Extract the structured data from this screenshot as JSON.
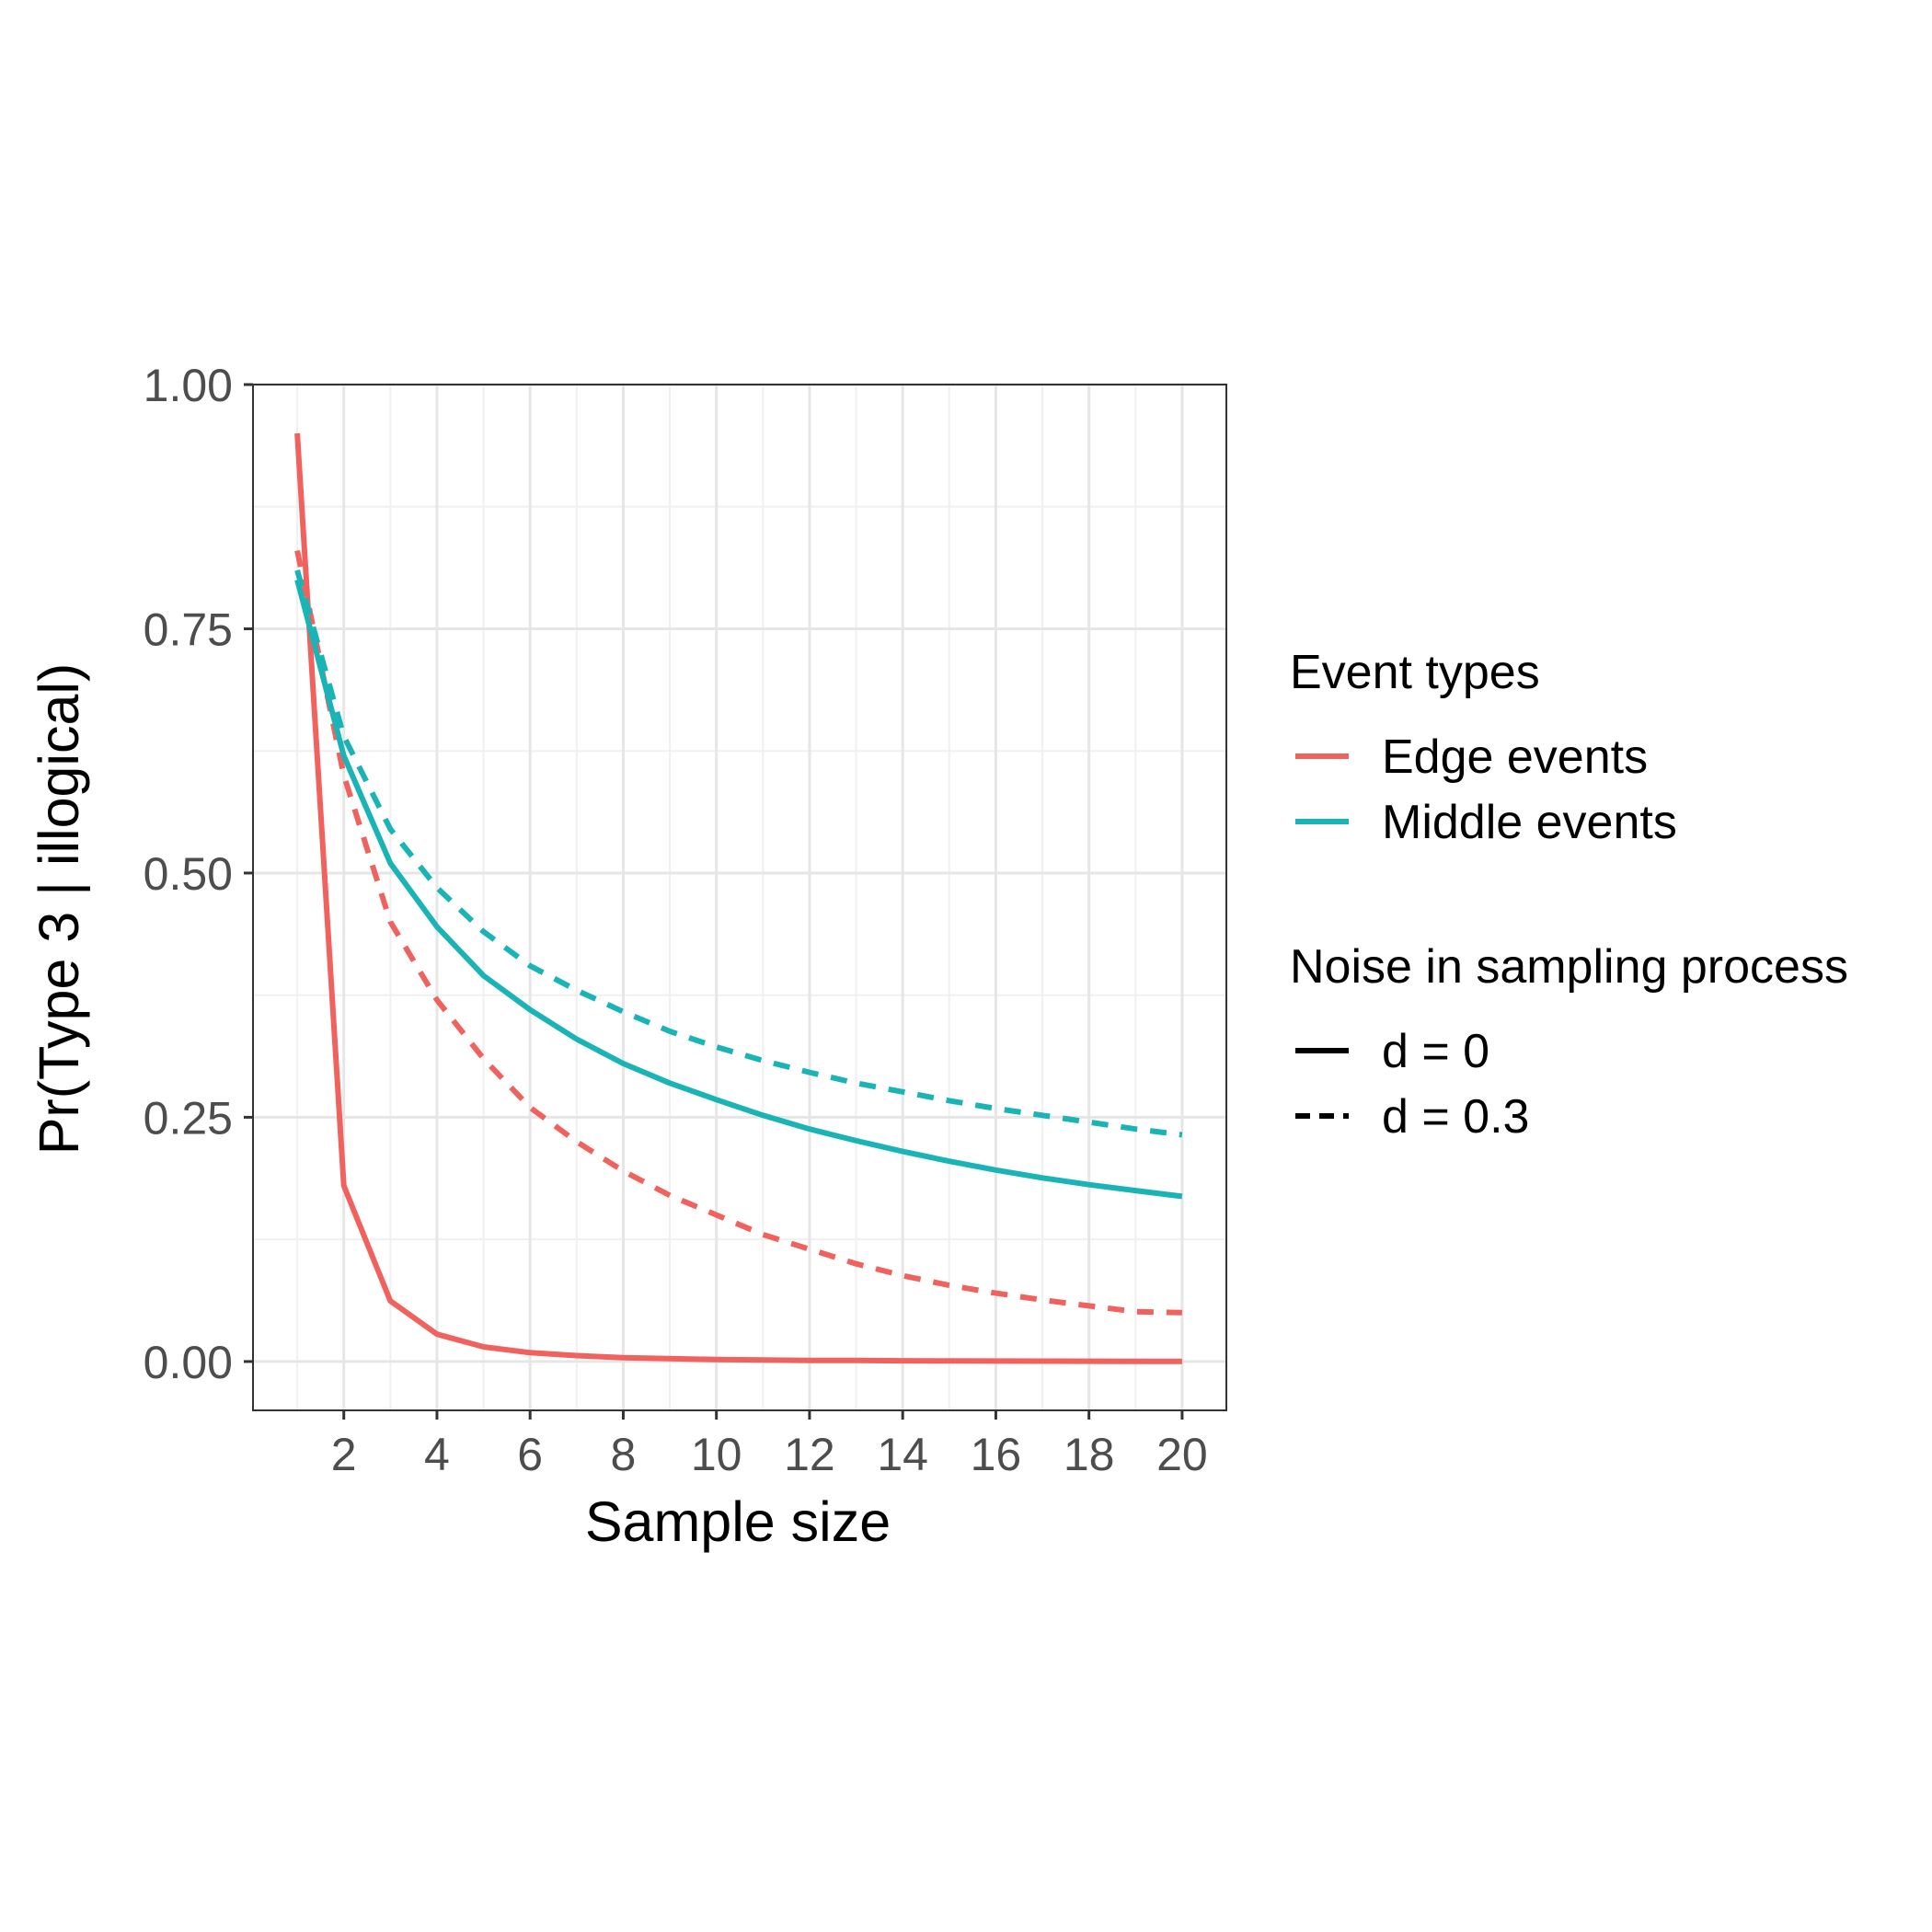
{
  "chart_data": {
    "type": "line",
    "title": "",
    "xlabel": "Sample size",
    "ylabel": "Pr(Type 3 | illogical)",
    "xlim": [
      0.05,
      20.95
    ],
    "ylim": [
      -0.05,
      1.0
    ],
    "x_ticks": [
      2,
      4,
      6,
      8,
      10,
      12,
      14,
      16,
      18,
      20
    ],
    "x_tick_labels": [
      "2",
      "4",
      "6",
      "8",
      "10",
      "12",
      "14",
      "16",
      "18",
      "20"
    ],
    "y_ticks": [
      0,
      0.25,
      0.5,
      0.75,
      1.0
    ],
    "y_tick_labels": [
      "0.00",
      "0.25",
      "0.50",
      "0.75",
      "1.00"
    ],
    "grid": true,
    "legend_position": "right",
    "legends": [
      {
        "title": "Event types",
        "items": [
          {
            "label": "Edge events",
            "color": "#f0625d"
          },
          {
            "label": "Middle events",
            "color": "#1bb4b6"
          }
        ]
      },
      {
        "title": "Noise in sampling process",
        "items": [
          {
            "label": "d = 0",
            "linetype": "solid"
          },
          {
            "label": "d = 0.3",
            "linetype": "dashed"
          }
        ]
      }
    ],
    "x": [
      1,
      2,
      3,
      4,
      5,
      6,
      7,
      8,
      9,
      10,
      11,
      12,
      13,
      14,
      15,
      16,
      17,
      18,
      19,
      20
    ],
    "series": [
      {
        "name": "Edge events, d = 0",
        "color": "#f0625d",
        "linetype": "solid",
        "values": [
          0.95,
          0.18,
          0.062,
          0.028,
          0.015,
          0.009,
          0.006,
          0.004,
          0.003,
          0.002,
          0.0015,
          0.001,
          0.001,
          0.0008,
          0.0006,
          0.0005,
          0.0004,
          0.0003,
          0.0002,
          0.0001
        ]
      },
      {
        "name": "Edge events, d = 0.3",
        "color": "#f0625d",
        "linetype": "dashed",
        "values": [
          0.83,
          0.6,
          0.45,
          0.37,
          0.31,
          0.26,
          0.225,
          0.195,
          0.17,
          0.15,
          0.13,
          0.115,
          0.1,
          0.088,
          0.078,
          0.07,
          0.063,
          0.057,
          0.051,
          0.05
        ]
      },
      {
        "name": "Middle events, d = 0",
        "color": "#1bb4b6",
        "linetype": "solid",
        "values": [
          0.8,
          0.62,
          0.51,
          0.445,
          0.395,
          0.36,
          0.33,
          0.305,
          0.285,
          0.268,
          0.252,
          0.238,
          0.226,
          0.215,
          0.205,
          0.196,
          0.188,
          0.181,
          0.175,
          0.169
        ]
      },
      {
        "name": "Middle events, d = 0.3",
        "color": "#1bb4b6",
        "linetype": "dashed",
        "values": [
          0.81,
          0.64,
          0.545,
          0.485,
          0.44,
          0.405,
          0.38,
          0.358,
          0.338,
          0.322,
          0.308,
          0.296,
          0.285,
          0.276,
          0.267,
          0.259,
          0.252,
          0.245,
          0.238,
          0.232
        ]
      }
    ]
  }
}
